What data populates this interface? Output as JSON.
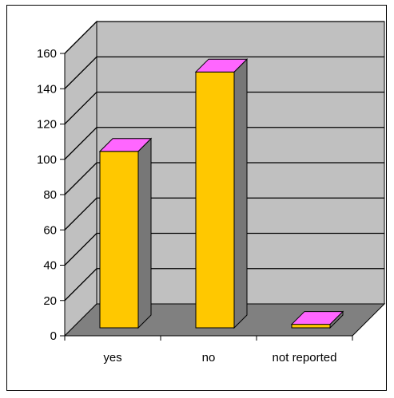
{
  "chart_data": {
    "type": "bar",
    "categories": [
      "yes",
      "no",
      "not reported"
    ],
    "values": [
      100,
      145,
      2
    ],
    "ylim": [
      0,
      160
    ],
    "yticks": [
      0,
      20,
      40,
      60,
      80,
      100,
      120,
      140,
      160
    ],
    "grid": true,
    "legend": "none",
    "colors": {
      "bar_front": "#FFC800",
      "bar_top": "#FF66FF",
      "bar_side": "#777777",
      "back_wall": "#C0C0C0",
      "side_wall": "#C0C0C0",
      "floor": "#808080"
    }
  }
}
